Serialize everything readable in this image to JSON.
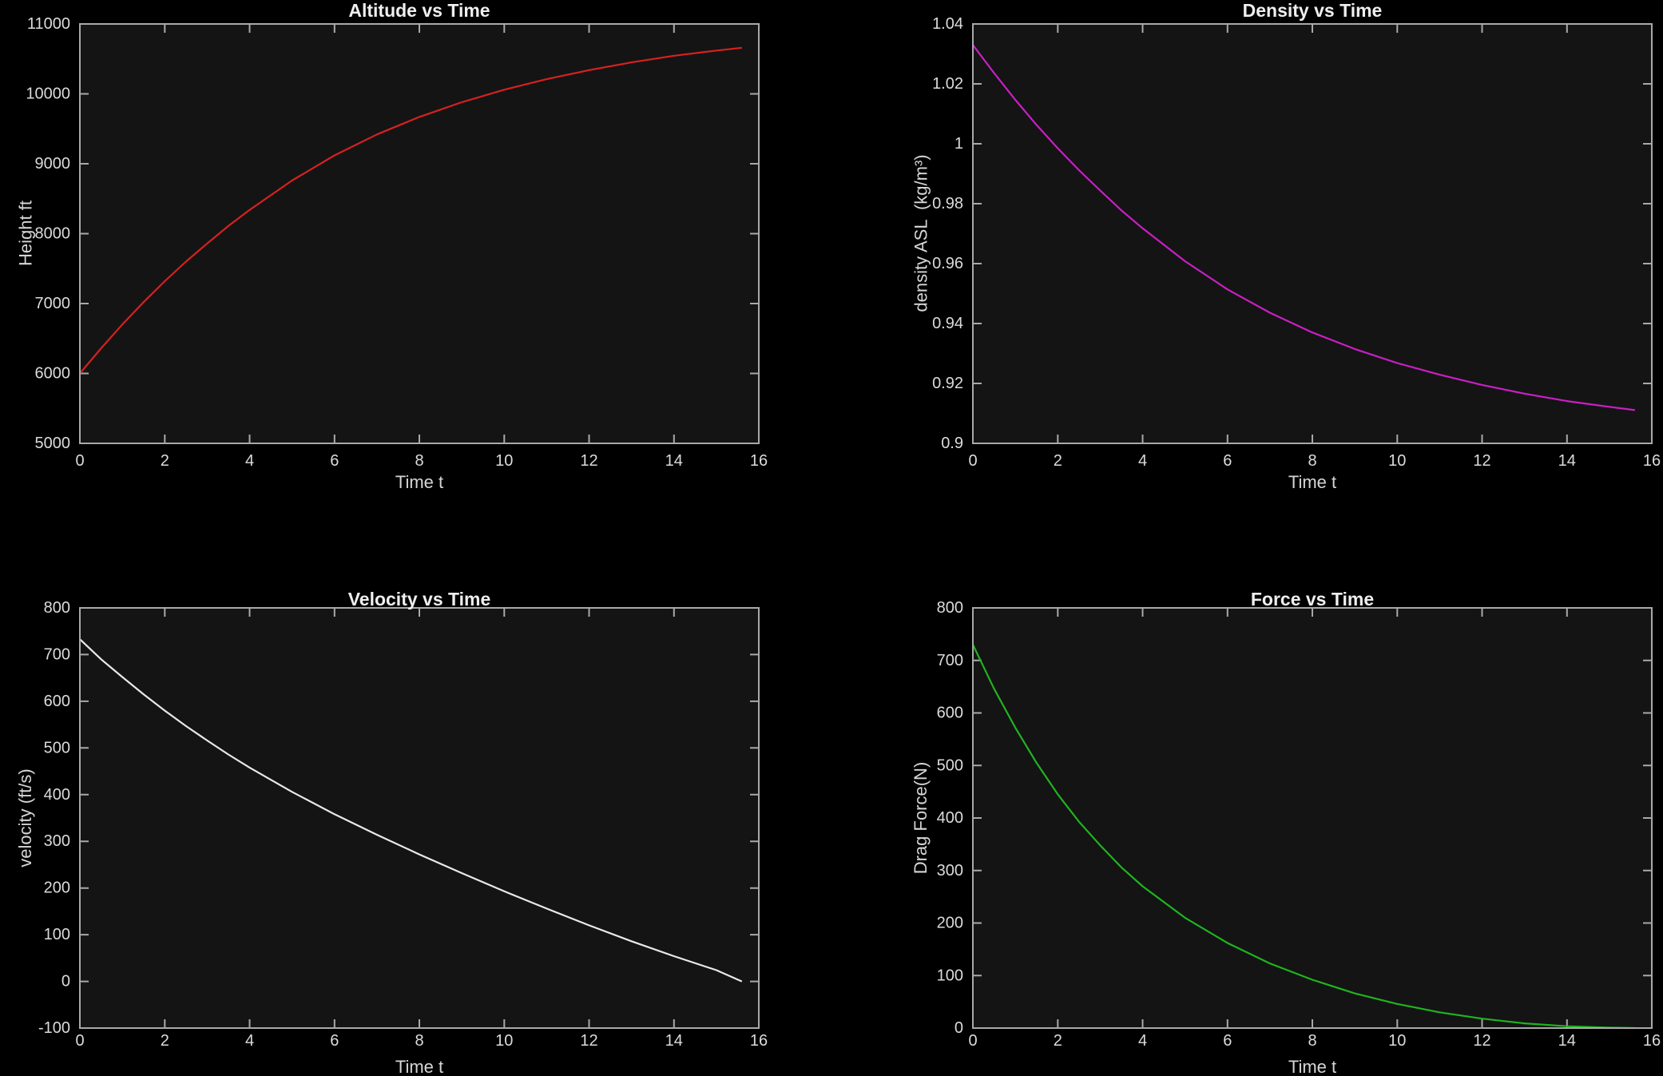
{
  "figure": {
    "background": "#000000",
    "plot_background": "#141414",
    "axis_color": "#a9a9a9",
    "tick_label_color": "#dbdbdb",
    "title_color": "#efefef",
    "label_color": "#d6d6d6"
  },
  "chart_data": [
    {
      "id": "altitude",
      "type": "line",
      "title": "Altitude vs Time",
      "xlabel": "Time t",
      "ylabel": "Height ft",
      "line_color": "#d62120",
      "legend": null,
      "grid": false,
      "xlim": [
        0,
        16
      ],
      "ylim": [
        5000,
        11000
      ],
      "xticks": [
        0,
        2,
        4,
        6,
        8,
        10,
        12,
        14,
        16
      ],
      "yticks": [
        5000,
        6000,
        7000,
        8000,
        9000,
        10000,
        11000
      ],
      "ytick_labels": [
        "5000",
        "6000",
        "7000",
        "8000",
        "9000",
        "10000",
        "11000"
      ],
      "x": [
        0,
        0.5,
        1,
        1.5,
        2,
        2.5,
        3,
        3.5,
        4,
        5,
        6,
        7,
        8,
        9,
        10,
        11,
        12,
        13,
        14,
        15,
        15.6
      ],
      "y": [
        6000,
        6360,
        6700,
        7020,
        7320,
        7600,
        7860,
        8110,
        8340,
        8760,
        9120,
        9420,
        9670,
        9880,
        10060,
        10210,
        10340,
        10450,
        10545,
        10620,
        10660
      ]
    },
    {
      "id": "density",
      "type": "line",
      "title": "Density vs Time",
      "xlabel": "Time t",
      "ylabel": "density ASL  (kg/m³)",
      "line_color": "#ca1fc6",
      "legend": null,
      "grid": false,
      "xlim": [
        0,
        16
      ],
      "ylim": [
        0.9,
        1.04
      ],
      "xticks": [
        0,
        2,
        4,
        6,
        8,
        10,
        12,
        14,
        16
      ],
      "yticks": [
        0.9,
        0.92,
        0.94,
        0.96,
        0.98,
        1,
        1.02,
        1.04
      ],
      "ytick_labels": [
        "0.9",
        "0.92",
        "0.94",
        "0.96",
        "0.98",
        "1",
        "1.02",
        "1.04"
      ],
      "x": [
        0,
        0.5,
        1,
        1.5,
        2,
        2.5,
        3,
        3.5,
        4,
        5,
        6,
        7,
        8,
        9,
        10,
        11,
        12,
        13,
        14,
        15,
        15.6
      ],
      "y": [
        1.033,
        1.0236,
        1.0147,
        1.0063,
        0.9985,
        0.9912,
        0.9844,
        0.9778,
        0.9718,
        0.9608,
        0.9514,
        0.9436,
        0.937,
        0.9315,
        0.9268,
        0.9229,
        0.9195,
        0.9166,
        0.9141,
        0.9122,
        0.9111
      ]
    },
    {
      "id": "velocity",
      "type": "line",
      "title": "Velocity vs Time",
      "xlabel": "Time t",
      "ylabel": "velocity (ft/s)",
      "line_color": "#e9e9e9",
      "legend": null,
      "grid": false,
      "xlim": [
        0,
        16
      ],
      "ylim": [
        -100,
        800
      ],
      "xticks": [
        0,
        2,
        4,
        6,
        8,
        10,
        12,
        14,
        16
      ],
      "yticks": [
        -100,
        0,
        100,
        200,
        300,
        400,
        500,
        600,
        700,
        800
      ],
      "ytick_labels": [
        "-100",
        "0",
        "100",
        "200",
        "300",
        "400",
        "500",
        "600",
        "700",
        "800"
      ],
      "x": [
        0,
        0.5,
        1,
        1.5,
        2,
        2.5,
        3,
        3.5,
        4,
        5,
        6,
        7,
        8,
        9,
        10,
        11,
        12,
        13,
        14,
        15,
        15.6
      ],
      "y": [
        733,
        690,
        652,
        615,
        580,
        547,
        516,
        486,
        458,
        406,
        358,
        314,
        272,
        232,
        193,
        156,
        120,
        86,
        54,
        24,
        0
      ]
    },
    {
      "id": "force",
      "type": "line",
      "title": "Force vs Time",
      "xlabel": "Time t",
      "ylabel": "Drag Force(N)",
      "line_color": "#1fb41f",
      "legend": null,
      "grid": false,
      "xlim": [
        0,
        16
      ],
      "ylim": [
        0,
        800
      ],
      "xticks": [
        0,
        2,
        4,
        6,
        8,
        10,
        12,
        14,
        16
      ],
      "yticks": [
        0,
        100,
        200,
        300,
        400,
        500,
        600,
        700,
        800
      ],
      "ytick_labels": [
        "0",
        "100",
        "200",
        "300",
        "400",
        "500",
        "600",
        "700",
        "800"
      ],
      "x": [
        0,
        0.5,
        1,
        1.5,
        2,
        2.5,
        3,
        3.5,
        4,
        5,
        6,
        7,
        8,
        9,
        10,
        11,
        12,
        13,
        14,
        15,
        15.6
      ],
      "y": [
        730,
        646,
        572,
        505,
        445,
        393,
        348,
        306,
        270,
        210,
        162,
        123,
        92,
        66,
        46,
        30,
        18,
        9,
        3.5,
        0.7,
        0
      ]
    }
  ]
}
